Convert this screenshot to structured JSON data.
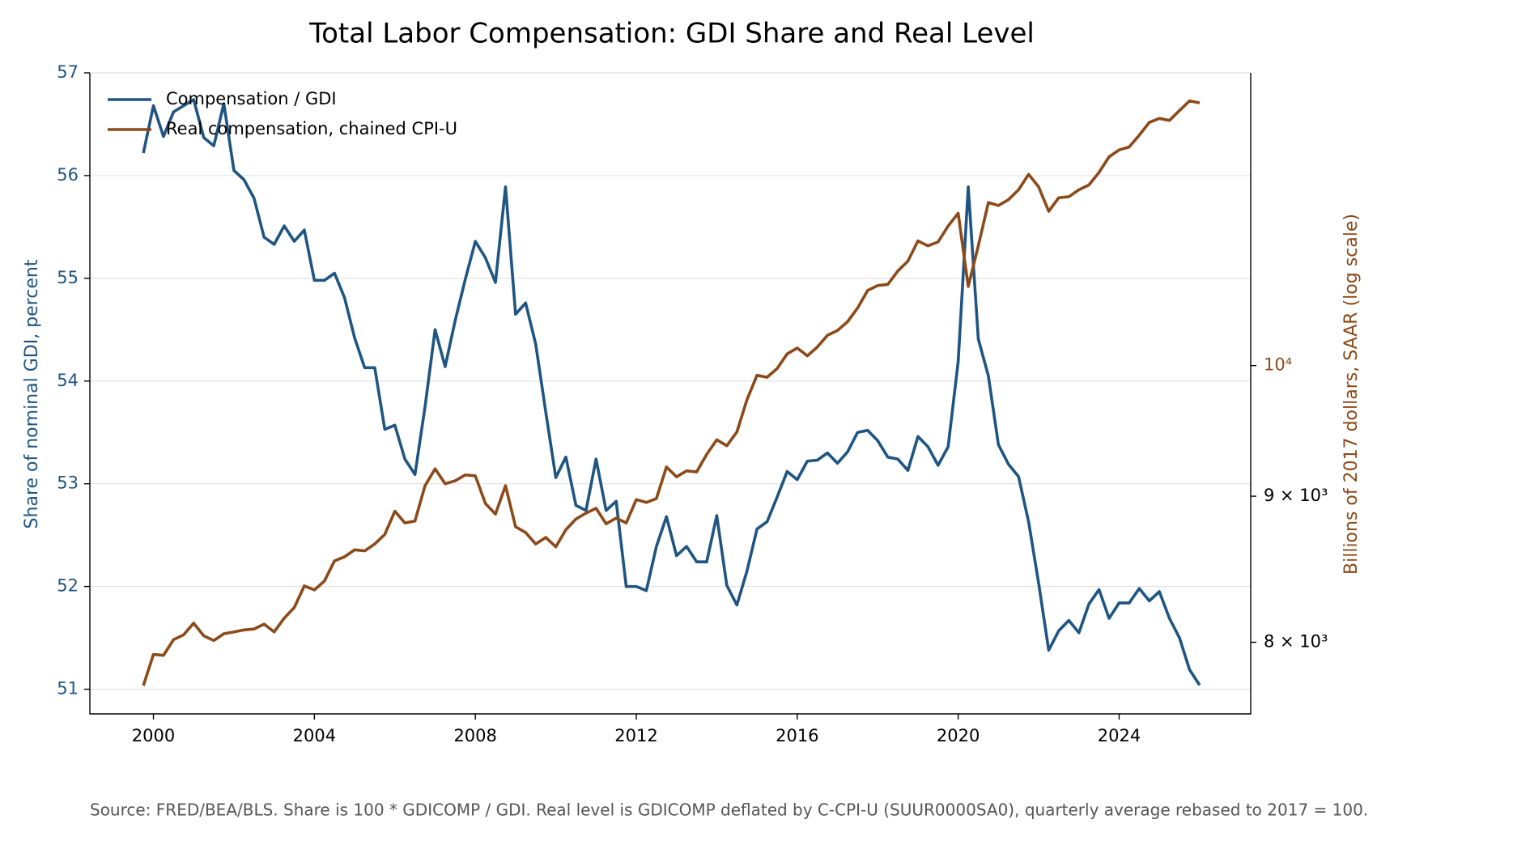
{
  "chart_data": {
    "type": "line",
    "title": "Total Labor Compensation: GDI Share and Real Level",
    "ylabel": "Share of nominal GDI, percent",
    "y2label": "Billions of 2017 dollars, SAAR (log scale)",
    "source": "Source: FRED/BEA/BLS. Share is 100 * GDICOMP / GDI. Real level is GDICOMP deflated by C-CPI-U (SUUR0000SA0), quarterly average rebased to 2017 = 100.",
    "legend": "upper left",
    "grid": true,
    "y2log": true,
    "xlim": [
      1998.42,
      2027.27
    ],
    "xticks": [
      2000,
      2004,
      2008,
      2012,
      2016,
      2020,
      2024
    ],
    "ylim": [
      50.76,
      57.0
    ],
    "yticks": [
      51,
      52,
      53,
      54,
      55,
      56,
      57
    ],
    "y2lim": [
      7551,
      12663
    ],
    "y2ticks": [
      {
        "value": 10000,
        "label": "10⁴"
      },
      {
        "value": 9000,
        "label": "9 × 10³"
      },
      {
        "value": 8000,
        "label": "8 × 10³"
      }
    ],
    "x": [
      1999.75,
      2000,
      2000.25,
      2000.5,
      2000.75,
      2001,
      2001.25,
      2001.5,
      2001.75,
      2002,
      2002.25,
      2002.5,
      2002.75,
      2003,
      2003.25,
      2003.5,
      2003.75,
      2004,
      2004.25,
      2004.5,
      2004.75,
      2005,
      2005.25,
      2005.5,
      2005.75,
      2006,
      2006.25,
      2006.5,
      2006.75,
      2007,
      2007.25,
      2007.5,
      2007.75,
      2008,
      2008.25,
      2008.5,
      2008.75,
      2009,
      2009.25,
      2009.5,
      2009.75,
      2010,
      2010.25,
      2010.5,
      2010.75,
      2011,
      2011.25,
      2011.5,
      2011.75,
      2012,
      2012.25,
      2012.5,
      2012.75,
      2013,
      2013.25,
      2013.5,
      2013.75,
      2014,
      2014.25,
      2014.5,
      2014.75,
      2015,
      2015.25,
      2015.5,
      2015.75,
      2016,
      2016.25,
      2016.5,
      2016.75,
      2017,
      2017.25,
      2017.5,
      2017.75,
      2018,
      2018.25,
      2018.5,
      2018.75,
      2019,
      2019.25,
      2019.5,
      2019.75,
      2020,
      2020.25,
      2020.5,
      2020.75,
      2021,
      2021.25,
      2021.5,
      2021.75,
      2022,
      2022.25,
      2022.5,
      2022.75,
      2023,
      2023.25,
      2023.5,
      2023.75,
      2024,
      2024.25,
      2024.5,
      2024.75,
      2025,
      2025.25,
      2025.5,
      2025.75,
      2026
    ],
    "series": [
      {
        "name": "Compensation / GDI",
        "color": "#1f5582",
        "values": [
          56.22,
          56.68,
          56.38,
          56.62,
          56.68,
          56.74,
          56.37,
          56.29,
          56.7,
          56.05,
          55.96,
          55.78,
          55.4,
          55.33,
          55.51,
          55.36,
          55.47,
          54.98,
          54.98,
          55.05,
          54.81,
          54.42,
          54.13,
          54.13,
          53.53,
          53.57,
          53.24,
          53.09,
          53.75,
          54.5,
          54.14,
          54.59,
          54.99,
          55.36,
          55.2,
          54.96,
          55.89,
          54.65,
          54.76,
          54.36,
          53.7,
          53.06,
          53.26,
          52.79,
          52.74,
          53.24,
          52.74,
          52.83,
          52.0,
          52.0,
          51.96,
          52.39,
          52.68,
          52.3,
          52.39,
          52.24,
          52.24,
          52.69,
          52.01,
          51.82,
          52.15,
          52.56,
          52.63,
          52.87,
          53.12,
          53.04,
          53.22,
          53.23,
          53.3,
          53.2,
          53.31,
          53.5,
          53.52,
          53.42,
          53.26,
          53.24,
          53.13,
          53.46,
          53.36,
          53.18,
          53.36,
          54.19,
          55.89,
          54.41,
          54.05,
          53.38,
          53.19,
          53.07,
          52.63,
          52.03,
          51.38,
          51.57,
          51.67,
          51.55,
          51.83,
          51.97,
          51.69,
          51.84,
          51.84,
          51.98,
          51.86,
          51.95,
          51.69,
          51.5,
          51.19,
          51.04
        ]
      },
      {
        "name": "Real compensation, chained CPI-U",
        "color": "#8c4a1a",
        "axis": "y2",
        "values": [
          7725,
          7922,
          7916,
          8017,
          8048,
          8124,
          8042,
          8011,
          8055,
          8067,
          8080,
          8086,
          8118,
          8067,
          8157,
          8227,
          8372,
          8345,
          8405,
          8543,
          8571,
          8619,
          8612,
          8660,
          8727,
          8892,
          8808,
          8822,
          9077,
          9201,
          9091,
          9113,
          9156,
          9149,
          8948,
          8871,
          9077,
          8781,
          8740,
          8660,
          8706,
          8640,
          8760,
          8836,
          8878,
          8913,
          8802,
          8843,
          8808,
          8976,
          8955,
          8983,
          9215,
          9142,
          9186,
          9178,
          9309,
          9419,
          9374,
          9479,
          9728,
          9922,
          9906,
          9976,
          10095,
          10143,
          10079,
          10151,
          10247,
          10287,
          10360,
          10475,
          10625,
          10667,
          10676,
          10793,
          10879,
          11058,
          11014,
          11049,
          11191,
          11307,
          10659,
          11014,
          11405,
          11378,
          11432,
          11523,
          11668,
          11550,
          11325,
          11450,
          11459,
          11523,
          11568,
          11686,
          11834,
          11900,
          11928,
          12042,
          12167,
          12206,
          12186,
          12284,
          12380,
          12360
        ]
      }
    ]
  }
}
